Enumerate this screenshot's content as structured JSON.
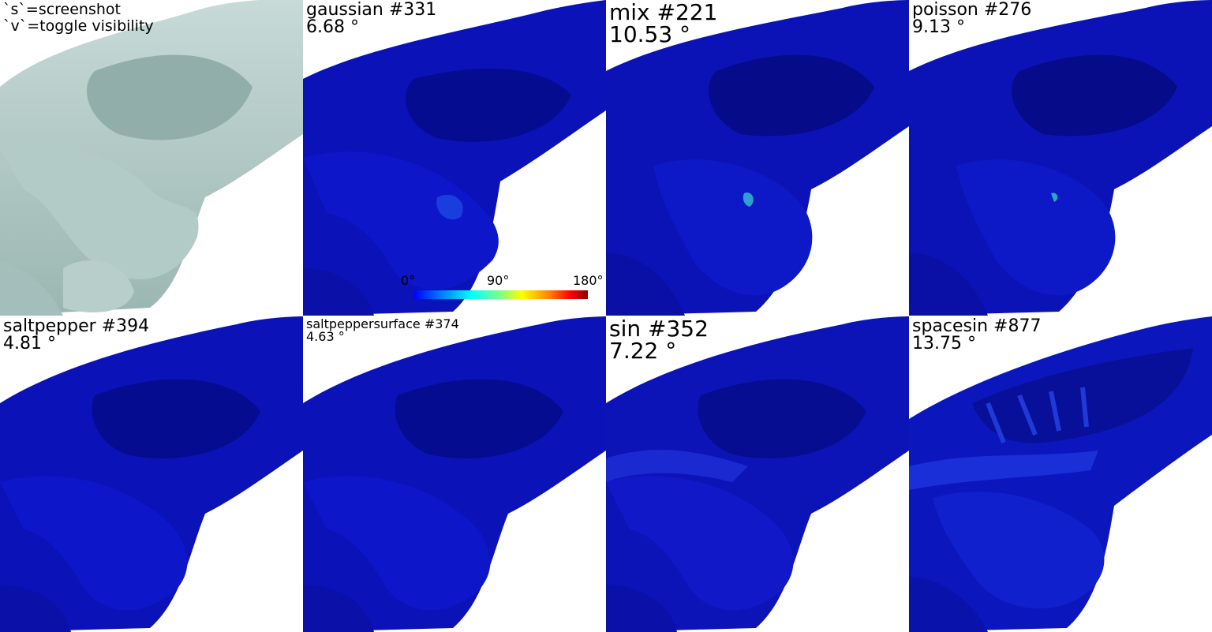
{
  "hints": {
    "line1": "`s`=screenshot",
    "line2": "`v`=toggle visibility"
  },
  "panels": [
    {
      "name": "",
      "error": ""
    },
    {
      "name": "gaussian #331",
      "error": "6.68 °"
    },
    {
      "name": "mix #221",
      "error": "10.53 °"
    },
    {
      "name": "poisson #276",
      "error": "9.13 °"
    },
    {
      "name": "saltpepper #394",
      "error": "4.81 °"
    },
    {
      "name": "saltpeppersurface #374",
      "error": "4.63 °"
    },
    {
      "name": "sin #352",
      "error": "7.22 °"
    },
    {
      "name": "spacesin #877",
      "error": "13.75 °"
    }
  ],
  "colorbar": {
    "min_label": "0°",
    "mid_label": "90°",
    "max_label": "180°"
  },
  "colors": {
    "background": "#ffffff",
    "reference_mesh": "#a9c3bf",
    "error_low": "#0a0fbf",
    "error_high": "#8b0000"
  }
}
